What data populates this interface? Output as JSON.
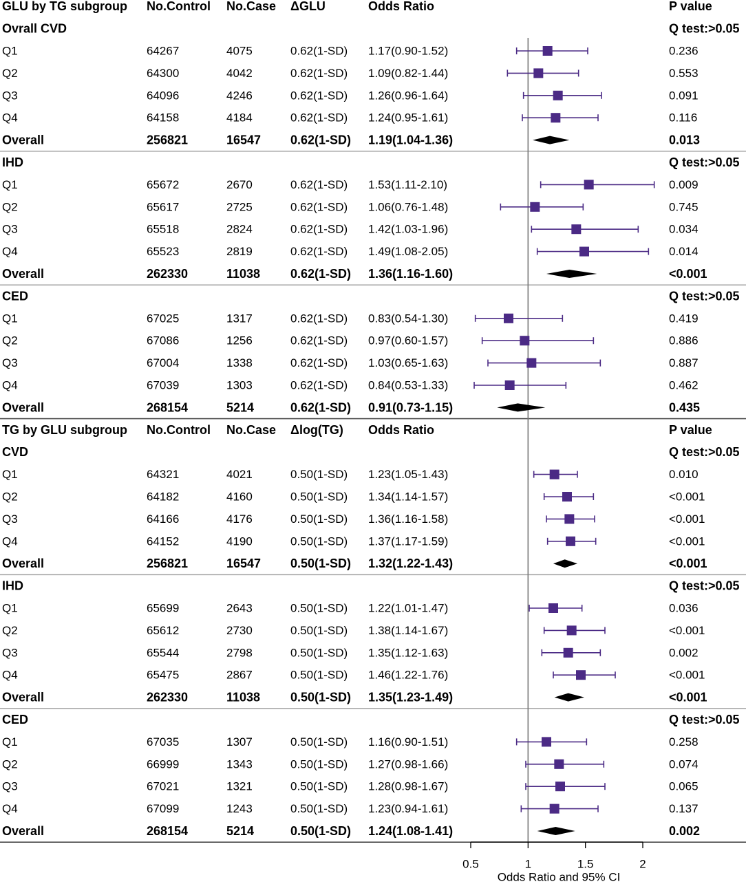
{
  "chart_data": {
    "type": "scatter",
    "xlabel": "Odds Ratio and 95% CI",
    "xlim": [
      0.5,
      2
    ],
    "xticks": [
      0.5,
      1,
      1.5,
      2
    ],
    "reference_line": 1,
    "colors": {
      "square": "#4b2a85",
      "whisker": "#4b2a85",
      "diamond": "#000000",
      "reference_line": "#7a7a7a"
    },
    "panels": [
      {
        "header": {
          "label": "GLU by TG subgroup",
          "control": "No.Control",
          "case": "No.Case",
          "delta": "ΔGLU",
          "or": "Odds Ratio",
          "p": "P value"
        },
        "delta_value": "0.62(1-SD)",
        "groups": [
          {
            "name": "Ovrall CVD",
            "heterogeneity": "Q test:>0.05",
            "rows": [
              {
                "label": "Q1",
                "control": 64267,
                "case": 4075,
                "or": 1.17,
                "lo": 0.9,
                "hi": 1.52,
                "p": "0.236"
              },
              {
                "label": "Q2",
                "control": 64300,
                "case": 4042,
                "or": 1.09,
                "lo": 0.82,
                "hi": 1.44,
                "p": "0.553"
              },
              {
                "label": "Q3",
                "control": 64096,
                "case": 4246,
                "or": 1.26,
                "lo": 0.96,
                "hi": 1.64,
                "p": "0.091"
              },
              {
                "label": "Q4",
                "control": 64158,
                "case": 4184,
                "or": 1.24,
                "lo": 0.95,
                "hi": 1.61,
                "p": "0.116"
              },
              {
                "label": "Overall",
                "summary": true,
                "control": 256821,
                "case": 16547,
                "or": 1.19,
                "lo": 1.04,
                "hi": 1.36,
                "p": "0.013"
              }
            ]
          },
          {
            "name": "IHD",
            "heterogeneity": "Q test:>0.05",
            "rows": [
              {
                "label": "Q1",
                "control": 65672,
                "case": 2670,
                "or": 1.53,
                "lo": 1.11,
                "hi": 2.1,
                "p": "0.009"
              },
              {
                "label": "Q2",
                "control": 65617,
                "case": 2725,
                "or": 1.06,
                "lo": 0.76,
                "hi": 1.48,
                "p": "0.745"
              },
              {
                "label": "Q3",
                "control": 65518,
                "case": 2824,
                "or": 1.42,
                "lo": 1.03,
                "hi": 1.96,
                "p": "0.034"
              },
              {
                "label": "Q4",
                "control": 65523,
                "case": 2819,
                "or": 1.49,
                "lo": 1.08,
                "hi": 2.05,
                "p": "0.014"
              },
              {
                "label": "Overall",
                "summary": true,
                "control": 262330,
                "case": 11038,
                "or": 1.36,
                "lo": 1.16,
                "hi": 1.6,
                "p": "<0.001"
              }
            ]
          },
          {
            "name": "CED",
            "heterogeneity": "Q test:>0.05",
            "rows": [
              {
                "label": "Q1",
                "control": 67025,
                "case": 1317,
                "or": 0.83,
                "lo": 0.54,
                "hi": 1.3,
                "p": "0.419"
              },
              {
                "label": "Q2",
                "control": 67086,
                "case": 1256,
                "or": 0.97,
                "lo": 0.6,
                "hi": 1.57,
                "p": "0.886"
              },
              {
                "label": "Q3",
                "control": 67004,
                "case": 1338,
                "or": 1.03,
                "lo": 0.65,
                "hi": 1.63,
                "p": "0.887"
              },
              {
                "label": "Q4",
                "control": 67039,
                "case": 1303,
                "or": 0.84,
                "lo": 0.53,
                "hi": 1.33,
                "p": "0.462"
              },
              {
                "label": "Overall",
                "summary": true,
                "control": 268154,
                "case": 5214,
                "or": 0.91,
                "lo": 0.73,
                "hi": 1.15,
                "p": "0.435"
              }
            ]
          }
        ]
      },
      {
        "header": {
          "label": "TG by GLU subgroup",
          "control": "No.Control",
          "case": "No.Case",
          "delta": "Δlog(TG)",
          "or": "Odds Ratio",
          "p": "P value"
        },
        "delta_value": "0.50(1-SD)",
        "groups": [
          {
            "name": "CVD",
            "heterogeneity": "Q test:>0.05",
            "rows": [
              {
                "label": "Q1",
                "control": 64321,
                "case": 4021,
                "or": 1.23,
                "lo": 1.05,
                "hi": 1.43,
                "p": "0.010"
              },
              {
                "label": "Q2",
                "control": 64182,
                "case": 4160,
                "or": 1.34,
                "lo": 1.14,
                "hi": 1.57,
                "p": "<0.001"
              },
              {
                "label": "Q3",
                "control": 64166,
                "case": 4176,
                "or": 1.36,
                "lo": 1.16,
                "hi": 1.58,
                "p": "<0.001"
              },
              {
                "label": "Q4",
                "control": 64152,
                "case": 4190,
                "or": 1.37,
                "lo": 1.17,
                "hi": 1.59,
                "p": "<0.001"
              },
              {
                "label": "Overall",
                "summary": true,
                "control": 256821,
                "case": 16547,
                "or": 1.32,
                "lo": 1.22,
                "hi": 1.43,
                "p": "<0.001"
              }
            ]
          },
          {
            "name": "IHD",
            "heterogeneity": "Q test:>0.05",
            "rows": [
              {
                "label": "Q1",
                "control": 65699,
                "case": 2643,
                "or": 1.22,
                "lo": 1.01,
                "hi": 1.47,
                "p": "0.036"
              },
              {
                "label": "Q2",
                "control": 65612,
                "case": 2730,
                "or": 1.38,
                "lo": 1.14,
                "hi": 1.67,
                "p": "<0.001"
              },
              {
                "label": "Q3",
                "control": 65544,
                "case": 2798,
                "or": 1.35,
                "lo": 1.12,
                "hi": 1.63,
                "p": "0.002"
              },
              {
                "label": "Q4",
                "control": 65475,
                "case": 2867,
                "or": 1.46,
                "lo": 1.22,
                "hi": 1.76,
                "p": "<0.001"
              },
              {
                "label": "Overall",
                "summary": true,
                "control": 262330,
                "case": 11038,
                "or": 1.35,
                "lo": 1.23,
                "hi": 1.49,
                "p": "<0.001"
              }
            ]
          },
          {
            "name": "CED",
            "heterogeneity": "Q test:>0.05",
            "rows": [
              {
                "label": "Q1",
                "control": 67035,
                "case": 1307,
                "or": 1.16,
                "lo": 0.9,
                "hi": 1.51,
                "p": "0.258"
              },
              {
                "label": "Q2",
                "control": 66999,
                "case": 1343,
                "or": 1.27,
                "lo": 0.98,
                "hi": 1.66,
                "p": "0.074"
              },
              {
                "label": "Q3",
                "control": 67021,
                "case": 1321,
                "or": 1.28,
                "lo": 0.98,
                "hi": 1.67,
                "p": "0.065"
              },
              {
                "label": "Q4",
                "control": 67099,
                "case": 1243,
                "or": 1.23,
                "lo": 0.94,
                "hi": 1.61,
                "p": "0.137"
              },
              {
                "label": "Overall",
                "summary": true,
                "control": 268154,
                "case": 5214,
                "or": 1.24,
                "lo": 1.08,
                "hi": 1.41,
                "p": "0.002"
              }
            ]
          }
        ]
      }
    ]
  }
}
